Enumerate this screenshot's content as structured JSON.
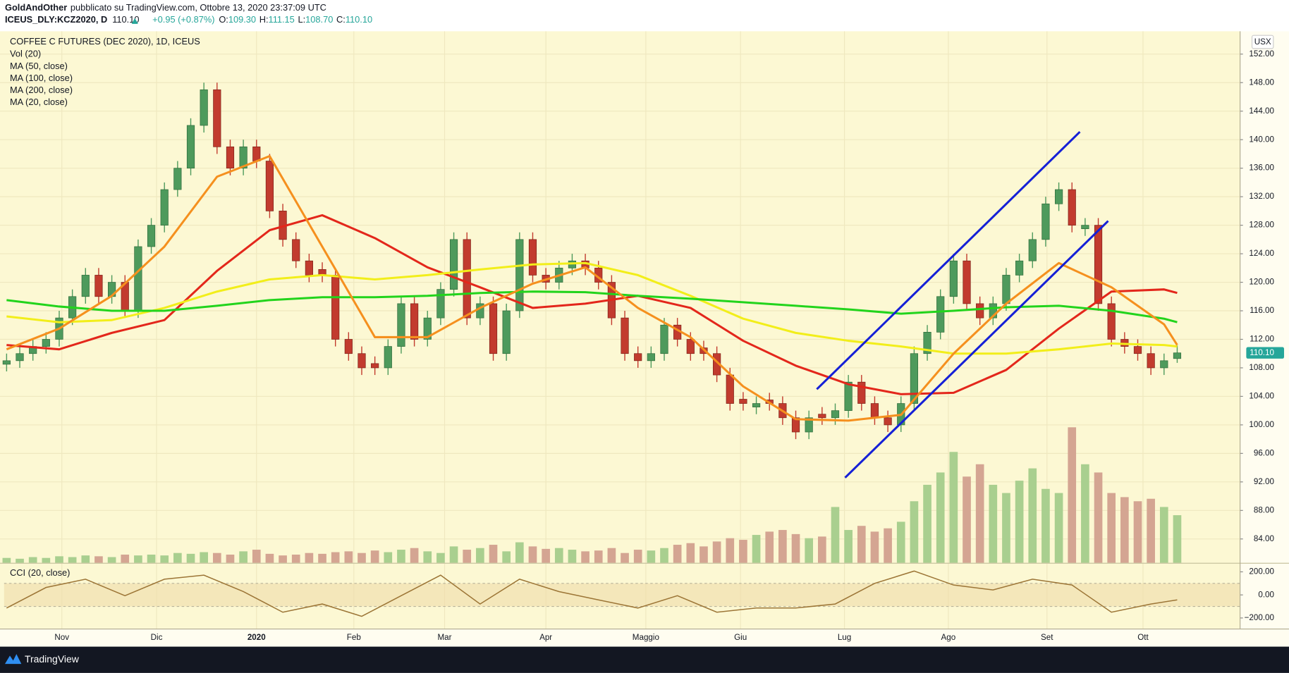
{
  "header": {
    "author": "GoldAndOther",
    "published": "pubblicato su TradingView.com, Ottobre 13, 2020 23:37:09 UTC",
    "symbol": "ICEUS_DLY:KCZ2020, D",
    "last": "110.10",
    "change": "+0.95 (+0.87%)",
    "ohlc": [
      {
        "label": "O:",
        "value": "109.30"
      },
      {
        "label": "H:",
        "value": "111.15"
      },
      {
        "label": "L:",
        "value": "108.70"
      },
      {
        "label": "C:",
        "value": "110.10"
      }
    ]
  },
  "footer": {
    "brand": "TradingView"
  },
  "chart_data": {
    "type": "candlestick",
    "title": "COFFEE C FUTURES (DEC 2020), 1D, ICEUS",
    "currency": "USX",
    "last_label": "110.10",
    "background": "#fcf8d3",
    "grid": true,
    "up_color": "#4e9a5c",
    "down_color": "#c23b2e",
    "volume_up_color": "#a9cf8f",
    "volume_down_color": "#d4a592",
    "volume_name": "Vol (20)",
    "xlim": [
      -0.19,
      93.75
    ],
    "xticks": [
      {
        "value": 4.2,
        "label": "Nov"
      },
      {
        "value": 11.4,
        "label": "Dic"
      },
      {
        "value": 19.0,
        "label": "2020"
      },
      {
        "value": 26.4,
        "label": "Feb"
      },
      {
        "value": 33.3,
        "label": "Mar"
      },
      {
        "value": 41.0,
        "label": "Apr"
      },
      {
        "value": 48.6,
        "label": "Maggio"
      },
      {
        "value": 55.8,
        "label": "Giu"
      },
      {
        "value": 63.7,
        "label": "Lug"
      },
      {
        "value": 71.6,
        "label": "Ago"
      },
      {
        "value": 79.1,
        "label": "Set"
      },
      {
        "value": 86.4,
        "label": "Ott"
      }
    ],
    "ylim": [
      80.65,
      155.2
    ],
    "yticks": [
      {
        "value": 84,
        "label": "84.00"
      },
      {
        "value": 88,
        "label": "88.00"
      },
      {
        "value": 92,
        "label": "92.00"
      },
      {
        "value": 96,
        "label": "96.00"
      },
      {
        "value": 100,
        "label": "100.00"
      },
      {
        "value": 104,
        "label": "104.00"
      },
      {
        "value": 108,
        "label": "108.00"
      },
      {
        "value": 112,
        "label": "112.00"
      },
      {
        "value": 116,
        "label": "116.00"
      },
      {
        "value": 120,
        "label": "120.00"
      },
      {
        "value": 124,
        "label": "124.00"
      },
      {
        "value": 128,
        "label": "128.00"
      },
      {
        "value": 132,
        "label": "132.00"
      },
      {
        "value": 136,
        "label": "136.00"
      },
      {
        "value": 140,
        "label": "140.00"
      },
      {
        "value": 144,
        "label": "144.00"
      },
      {
        "value": 148,
        "label": "148.00"
      },
      {
        "value": 152,
        "label": "152.00"
      }
    ],
    "open": [
      108.5,
      109,
      110,
      111,
      112,
      115,
      118,
      121,
      118,
      120,
      116,
      125,
      128,
      133,
      136,
      142,
      147,
      139,
      136,
      139,
      137,
      130,
      126,
      123,
      121.8,
      121,
      112,
      110,
      108.6,
      108,
      111,
      117,
      112,
      115,
      119,
      126,
      115,
      117,
      110,
      116,
      126,
      121,
      120,
      122,
      123,
      122,
      120,
      115,
      110,
      109,
      110,
      114,
      112,
      110.8,
      110,
      107,
      103.6,
      102.5,
      103.5,
      103,
      101,
      99,
      101.5,
      101,
      102,
      106,
      103,
      101,
      100,
      103,
      110,
      113,
      118,
      123,
      117,
      115,
      117,
      121,
      123,
      126,
      131,
      133,
      127.5,
      128,
      117,
      112,
      111,
      110,
      108,
      109.3
    ],
    "high": [
      110,
      111,
      112,
      113,
      116,
      119,
      122,
      122,
      121,
      121,
      126,
      129,
      134,
      137,
      143,
      148,
      148,
      140,
      140,
      140,
      138,
      131,
      127,
      124,
      122.8,
      122,
      113,
      111,
      109.6,
      112,
      118,
      118,
      116,
      120,
      127,
      127,
      118,
      118,
      117,
      127,
      127,
      122,
      123,
      124,
      124,
      123,
      121,
      116,
      111,
      111,
      115,
      115,
      113,
      111.8,
      111,
      108,
      104.6,
      104,
      104.5,
      104,
      102,
      102,
      102.5,
      103,
      107,
      107,
      104,
      102,
      104,
      111,
      114,
      119,
      124,
      124,
      118,
      118,
      122,
      124,
      127,
      132,
      134,
      134,
      129,
      129,
      118,
      113,
      112,
      111,
      110,
      111.15
    ],
    "low": [
      107.5,
      108,
      109,
      110,
      111,
      114,
      117,
      117,
      117,
      115,
      115,
      124,
      127,
      132,
      135,
      141,
      138,
      135,
      135,
      136,
      129,
      125,
      122,
      120,
      120,
      111,
      109,
      107,
      107,
      107,
      110,
      111,
      111,
      114,
      118,
      114,
      114,
      109,
      109,
      115,
      120,
      119,
      119,
      121,
      121,
      119,
      114,
      109,
      108,
      108,
      109,
      111,
      109,
      109,
      106,
      102,
      102,
      101.5,
      102,
      100,
      98,
      98,
      100,
      100,
      101,
      102,
      100,
      99,
      99,
      102,
      109,
      112,
      117,
      116,
      114,
      114,
      116,
      120,
      122,
      125,
      130,
      127,
      126.5,
      116,
      111,
      110,
      109,
      107,
      107,
      108.7
    ],
    "close": [
      109,
      110,
      111,
      112,
      115,
      118,
      121,
      118,
      120,
      116,
      125,
      128,
      133,
      136,
      142,
      147,
      139,
      136,
      139,
      137,
      130,
      126,
      123,
      121,
      121,
      112,
      110,
      108,
      108,
      111,
      117,
      112,
      115,
      119,
      126,
      115,
      117,
      110,
      116,
      126,
      121,
      120,
      122,
      123,
      122,
      120,
      115,
      110,
      109,
      110,
      114,
      112,
      110,
      110,
      107,
      103,
      103,
      103,
      103,
      101,
      99,
      101,
      101,
      102,
      106,
      103,
      101,
      100,
      103,
      110,
      113,
      118,
      123,
      117,
      115,
      117,
      121,
      123,
      126,
      131,
      133,
      128,
      128,
      117,
      112,
      111,
      110,
      108,
      109,
      110.1
    ],
    "volume": [
      6,
      5,
      7,
      6,
      8,
      7,
      9,
      8,
      7,
      10,
      9,
      10,
      9,
      12,
      11,
      13,
      12,
      10,
      14,
      16,
      11,
      9,
      10,
      12,
      11,
      13,
      14,
      12,
      15,
      13,
      16,
      18,
      14,
      12,
      20,
      16,
      18,
      22,
      14,
      25,
      20,
      17,
      18,
      16,
      14,
      15,
      18,
      12,
      16,
      15,
      18,
      22,
      24,
      20,
      26,
      30,
      28,
      34,
      38,
      40,
      35,
      30,
      32,
      68,
      40,
      45,
      38,
      42,
      50,
      75,
      95,
      110,
      135,
      105,
      120,
      95,
      85,
      100,
      115,
      90,
      85,
      165,
      120,
      110,
      85,
      80,
      75,
      78,
      68,
      58
    ],
    "overlays": [
      {
        "name": "MA (50, close)",
        "color": "#e3271b",
        "x": [
          0,
          4,
          8,
          12,
          16,
          20,
          24,
          28,
          32,
          36,
          40,
          44,
          48,
          52,
          56,
          60,
          64,
          68,
          72,
          76,
          80,
          84,
          88,
          89
        ],
        "values": [
          111.2,
          110.6,
          112.9,
          114.7,
          121.6,
          127.3,
          129.4,
          126.2,
          122.1,
          119.3,
          116.4,
          117,
          118.1,
          116.4,
          111.8,
          108.3,
          105.7,
          104.3,
          104.5,
          107.7,
          113.5,
          118.7,
          119,
          118.5
        ]
      },
      {
        "name": "MA (100, close)",
        "color": "#f2ee1a",
        "x": [
          0,
          4,
          8,
          12,
          16,
          20,
          24,
          28,
          32,
          36,
          40,
          44,
          48,
          52,
          56,
          60,
          64,
          68,
          72,
          76,
          80,
          84,
          88,
          89
        ],
        "values": [
          115.2,
          114.4,
          114.7,
          116.4,
          118.7,
          120.4,
          121,
          120.4,
          121,
          121.8,
          122.5,
          122.7,
          121,
          118.1,
          114.9,
          112.9,
          111.8,
          111,
          110,
          110,
          110.6,
          111.4,
          111.2,
          111
        ]
      },
      {
        "name": "MA (200, close)",
        "color": "#22d41c",
        "x": [
          0,
          4,
          8,
          12,
          16,
          20,
          24,
          28,
          32,
          36,
          40,
          44,
          48,
          52,
          56,
          60,
          64,
          68,
          72,
          76,
          80,
          84,
          88,
          89
        ],
        "values": [
          117.5,
          116.6,
          116,
          116,
          116.7,
          117.5,
          117.9,
          117.9,
          118.1,
          118.5,
          118.7,
          118.6,
          118.1,
          117.7,
          117.2,
          116.7,
          116.2,
          115.6,
          116,
          116.5,
          116.7,
          116,
          114.9,
          114.4
        ]
      },
      {
        "name": "MA (20, close)",
        "color": "#f5901e",
        "x": [
          0,
          4,
          8,
          12,
          16,
          20,
          24,
          28,
          32,
          36,
          40,
          44,
          48,
          52,
          56,
          60,
          64,
          68,
          72,
          76,
          80,
          84,
          88,
          89
        ],
        "values": [
          110.6,
          113.5,
          118.1,
          125,
          134.8,
          137.7,
          125,
          112.3,
          112.3,
          116.4,
          119.8,
          122.1,
          116.4,
          112.3,
          105.4,
          100.8,
          100.6,
          101.4,
          110,
          117,
          122.7,
          119.3,
          114.1,
          111.2
        ]
      }
    ],
    "trendlines": [
      {
        "color": "#1520d6",
        "x": [
          61.6,
          81.6
        ],
        "values": [
          105.0,
          141.1
        ]
      },
      {
        "color": "#1520d6",
        "x": [
          63.75,
          83.75
        ],
        "values": [
          92.6,
          128.6
        ]
      }
    ],
    "cci": {
      "name": "CCI (20, close)",
      "color": "#9c7536",
      "band": [
        -100,
        100
      ],
      "band_color": "#eedcaa",
      "ylim": [
        -292,
        271
      ],
      "yticks": [
        {
          "value": 200,
          "label": "200.00"
        },
        {
          "value": 0,
          "label": "0.00"
        },
        {
          "value": -200,
          "label": "−200.00"
        }
      ],
      "x": [
        0,
        3,
        6,
        9,
        12,
        15,
        18,
        21,
        24,
        27,
        30,
        33,
        36,
        39,
        42,
        45,
        48,
        51,
        54,
        57,
        60,
        63,
        66,
        69,
        72,
        75,
        78,
        81,
        84,
        87,
        89
      ],
      "values": [
        -114,
        64,
        136,
        -7,
        136,
        171,
        29,
        -150,
        -79,
        -186,
        -7,
        171,
        -79,
        136,
        29,
        -43,
        -114,
        -7,
        -150,
        -114,
        -114,
        -79,
        100,
        207,
        86,
        43,
        136,
        86,
        -150,
        -79,
        -43
      ]
    }
  }
}
